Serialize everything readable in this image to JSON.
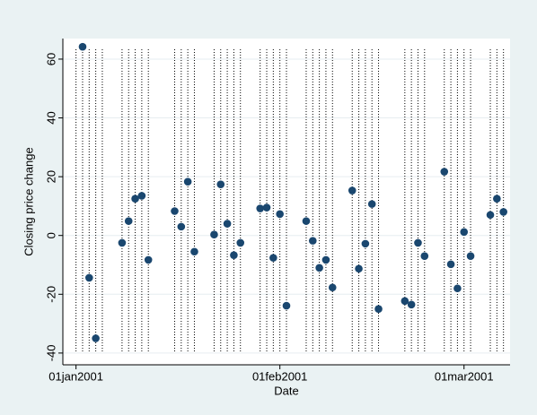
{
  "chart_data": {
    "type": "scatter",
    "x_label": "Date",
    "y_label": "Closing price change",
    "color": "#1a476f",
    "grid": true,
    "xlim": [
      "2000-12-30",
      "2001-03-08"
    ],
    "xticks": [
      {
        "value": "2001-01-01",
        "label": "01jan2001"
      },
      {
        "value": "2001-02-01",
        "label": "01feb2001"
      },
      {
        "value": "2001-03-01",
        "label": "01mar2001"
      }
    ],
    "ylim": [
      -44,
      67
    ],
    "yticks": [
      -40,
      -20,
      0,
      20,
      40,
      60
    ],
    "tlines": [
      "2001-01-01",
      "2001-01-02",
      "2001-01-03",
      "2001-01-04",
      "2001-01-05",
      "2001-01-08",
      "2001-01-09",
      "2001-01-10",
      "2001-01-11",
      "2001-01-12",
      "2001-01-16",
      "2001-01-17",
      "2001-01-18",
      "2001-01-19",
      "2001-01-22",
      "2001-01-23",
      "2001-01-24",
      "2001-01-25",
      "2001-01-26",
      "2001-01-29",
      "2001-01-30",
      "2001-01-31",
      "2001-02-01",
      "2001-02-02",
      "2001-02-05",
      "2001-02-06",
      "2001-02-07",
      "2001-02-08",
      "2001-02-09",
      "2001-02-12",
      "2001-02-13",
      "2001-02-14",
      "2001-02-15",
      "2001-02-16",
      "2001-02-20",
      "2001-02-21",
      "2001-02-22",
      "2001-02-23",
      "2001-02-26",
      "2001-02-27",
      "2001-02-28",
      "2001-03-01",
      "2001-03-02",
      "2001-03-05",
      "2001-03-06",
      "2001-03-07"
    ],
    "x": [
      "2001-01-02",
      "2001-01-03",
      "2001-01-04",
      "2001-01-08",
      "2001-01-09",
      "2001-01-10",
      "2001-01-11",
      "2001-01-12",
      "2001-01-16",
      "2001-01-17",
      "2001-01-18",
      "2001-01-19",
      "2001-01-22",
      "2001-01-23",
      "2001-01-24",
      "2001-01-25",
      "2001-01-26",
      "2001-01-29",
      "2001-01-30",
      "2001-01-31",
      "2001-02-01",
      "2001-02-02",
      "2001-02-05",
      "2001-02-06",
      "2001-02-07",
      "2001-02-08",
      "2001-02-09",
      "2001-02-12",
      "2001-02-13",
      "2001-02-14",
      "2001-02-15",
      "2001-02-16",
      "2001-02-20",
      "2001-02-21",
      "2001-02-22",
      "2001-02-23",
      "2001-02-26",
      "2001-02-27",
      "2001-02-28",
      "2001-03-01",
      "2001-03-02",
      "2001-03-05",
      "2001-03-06",
      "2001-03-07"
    ],
    "values": [
      64.2,
      -14.4,
      -35,
      -2.5,
      4.9,
      12.5,
      13.5,
      -8.3,
      8.3,
      3,
      18.3,
      -5.5,
      0.3,
      17.4,
      4,
      -6.7,
      -2.5,
      9.2,
      9.5,
      -7.6,
      7.3,
      -23.9,
      4.9,
      -1.8,
      -11,
      -8.3,
      -17.7,
      15.3,
      -11.3,
      -2.8,
      10.7,
      -25,
      -22.3,
      -23.5,
      -2.5,
      -7,
      21.7,
      -9.8,
      -18,
      1.2,
      -7,
      7,
      12.5,
      8
    ]
  }
}
